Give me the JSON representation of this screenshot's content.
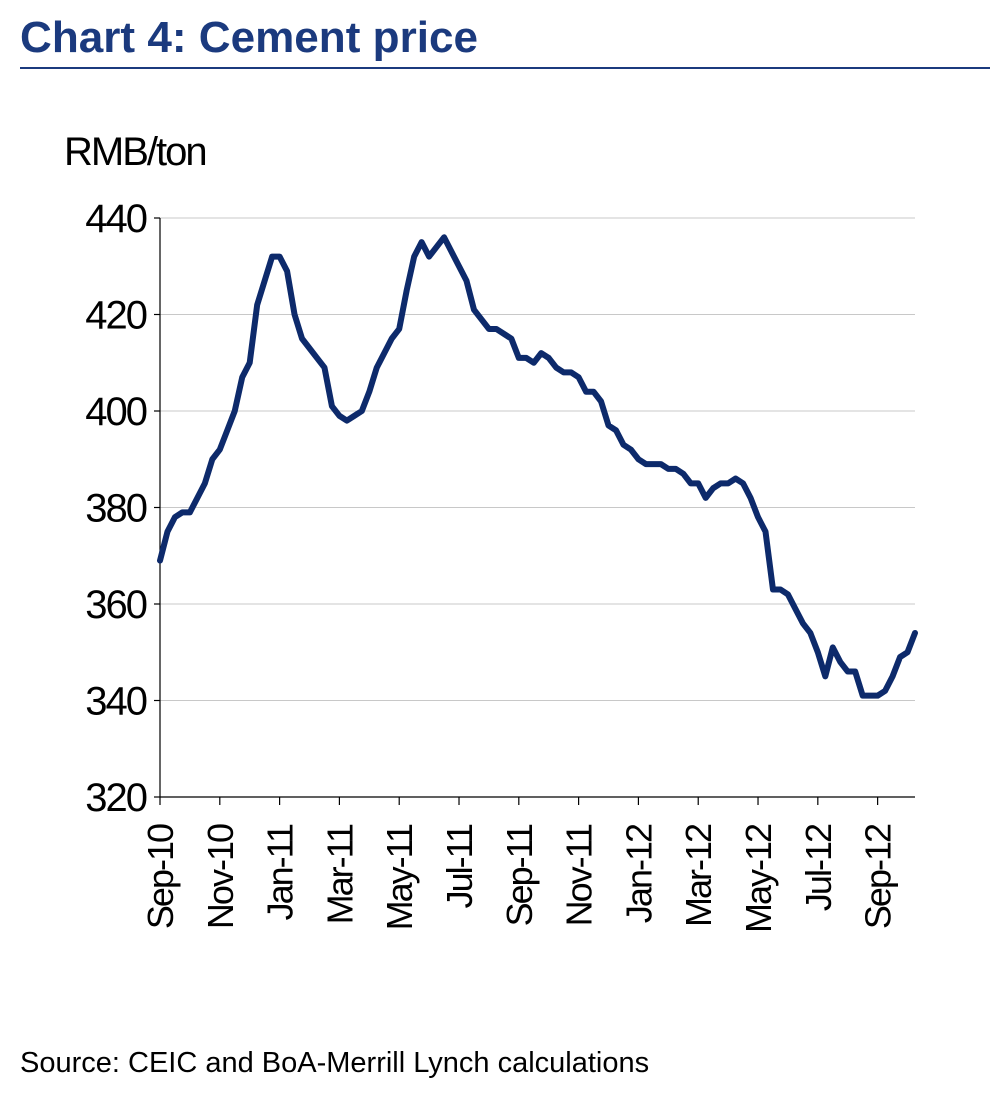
{
  "chart_data": {
    "type": "line",
    "title": "Chart 4: Cement price",
    "y_label": "RMB/ton",
    "source": "Source: CEIC and BoA-Merrill Lynch calculations",
    "categories": [
      "Sep-10",
      null,
      null,
      null,
      null,
      null,
      null,
      null,
      "Nov-10",
      null,
      null,
      null,
      null,
      null,
      null,
      null,
      "Jan-11",
      null,
      null,
      null,
      null,
      null,
      null,
      null,
      "Mar-11",
      null,
      null,
      null,
      null,
      null,
      null,
      null,
      "May-11",
      null,
      null,
      null,
      null,
      null,
      null,
      null,
      "Jul-11",
      null,
      null,
      null,
      null,
      null,
      null,
      null,
      "Sep-11",
      null,
      null,
      null,
      null,
      null,
      null,
      null,
      "Nov-11",
      null,
      null,
      null,
      null,
      null,
      null,
      null,
      "Jan-12",
      null,
      null,
      null,
      null,
      null,
      null,
      null,
      "Mar-12",
      null,
      null,
      null,
      null,
      null,
      null,
      null,
      "May-12",
      null,
      null,
      null,
      null,
      null,
      null,
      null,
      "Jul-12",
      null,
      null,
      null,
      null,
      null,
      null,
      null,
      "Sep-12",
      null,
      null,
      null,
      null,
      null
    ],
    "series": [
      {
        "name": "Cement price",
        "color": "#0d2a6b",
        "values": [
          369,
          375,
          378,
          379,
          379,
          382,
          385,
          390,
          392,
          396,
          400,
          407,
          410,
          422,
          427,
          432,
          432,
          429,
          420,
          415,
          413,
          411,
          409,
          401,
          399,
          398,
          399,
          400,
          404,
          409,
          412,
          415,
          417,
          425,
          432,
          435,
          432,
          434,
          436,
          433,
          430,
          427,
          421,
          419,
          417,
          417,
          416,
          415,
          411,
          411,
          410,
          412,
          411,
          409,
          408,
          408,
          407,
          404,
          404,
          402,
          397,
          396,
          393,
          392,
          390,
          389,
          389,
          389,
          388,
          388,
          387,
          385,
          385,
          382,
          384,
          385,
          385,
          386,
          385,
          382,
          378,
          375,
          363,
          363,
          362,
          359,
          356,
          354,
          350,
          345,
          351,
          348,
          346,
          346,
          341,
          341,
          341,
          342,
          345,
          349,
          350,
          354
        ]
      }
    ],
    "ylim": [
      320,
      440
    ],
    "yticks": [
      320,
      340,
      360,
      380,
      400,
      420,
      440
    ],
    "grid": true
  }
}
